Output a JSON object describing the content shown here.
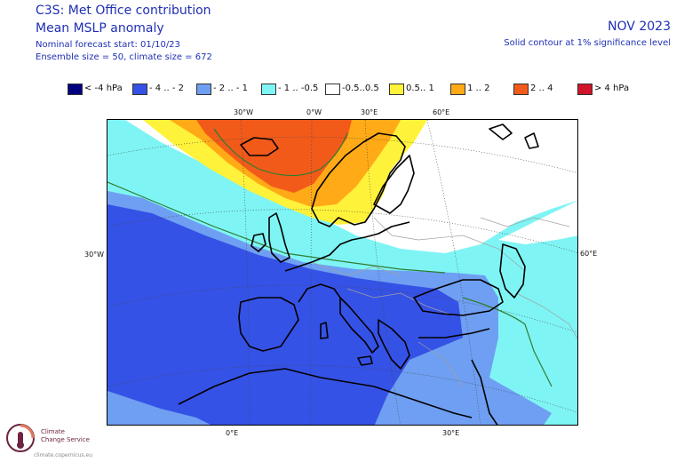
{
  "header": {
    "title_line1": "C3S: Met Office contribution",
    "title_line2": "Mean MSLP anomaly",
    "forecast_start": "Nominal forecast start: 01/10/23",
    "ensemble_info": "Ensemble size = 50, climate size = 672",
    "valid_month": "NOV 2023",
    "significance_note": "Solid contour at 1% significance level"
  },
  "legend": [
    {
      "label": "< -4 hPa",
      "color": "#00007f"
    },
    {
      "label": "- 4 .. - 2",
      "color": "#3552e6"
    },
    {
      "label": "- 2 .. - 1",
      "color": "#6f9ff2"
    },
    {
      "label": "- 1 .. -0.5",
      "color": "#7ff4f4"
    },
    {
      "label": "-0.5..0.5",
      "color": "#ffffff"
    },
    {
      "label": "0.5.. 1",
      "color": "#fff23a"
    },
    {
      "label": "1 .. 2",
      "color": "#ffaa16"
    },
    {
      "label": "2 .. 4",
      "color": "#f25a1a"
    },
    {
      "label": "> 4 hPa",
      "color": "#d0142a"
    }
  ],
  "map": {
    "grid_labels": {
      "top_30w": "30°W",
      "top_0w": "0°W",
      "top_30e": "30°E",
      "top_60e": "60°E",
      "left_30w": "30°W",
      "right_60e": "60°E",
      "bottom_0e": "0°E",
      "bottom_30e": "30°E"
    },
    "colors": {
      "strong_negative": "#3552e6",
      "moderate_negative": "#6f9ff2",
      "weak_negative": "#7ff4f4",
      "neutral": "#ffffff",
      "weak_positive": "#fff23a",
      "moderate_positive": "#ffaa16",
      "strong_positive": "#f25a1a",
      "coastline": "#000000",
      "borders": "#a0a0a0",
      "significance_contour": "#2e7d32"
    }
  },
  "logo": {
    "name_line1": "Climate",
    "name_line2": "Change Service",
    "url": "climate.copernicus.eu"
  }
}
